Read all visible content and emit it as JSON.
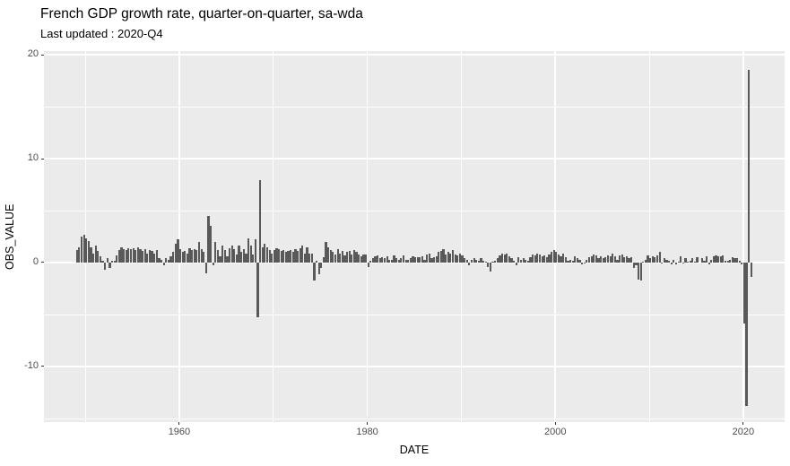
{
  "chart_data": {
    "type": "bar",
    "title": "French GDP growth rate, quarter-on-quarter, sa-wda",
    "subtitle": "Last updated : 2020-Q4",
    "xlabel": "DATE",
    "ylabel": "OBS_VALUE",
    "x_ticks": [
      1960,
      1980,
      2000,
      2020
    ],
    "x_minor_ticks": [
      1950,
      1970,
      1990,
      2010
    ],
    "y_ticks": [
      20,
      10,
      0,
      -10
    ],
    "y_minor_ticks": [
      15,
      5,
      -5,
      -15
    ],
    "xlim": [
      1945.6,
      2024.4
    ],
    "ylim": [
      -15.35,
      20.35
    ],
    "grid": "on",
    "legend": "none",
    "frequency": "quarterly",
    "start": "1949-Q1",
    "end": "2020-Q4",
    "start_year": 1949,
    "unit": "percent, quarter-on-quarter",
    "values": [
      1.2,
      1.5,
      2.5,
      2.7,
      2.3,
      2.1,
      1.5,
      0.9,
      1.6,
      1.1,
      0.6,
      0.2,
      -0.7,
      0.4,
      -0.5,
      0.2,
      0.2,
      0.7,
      1.2,
      1.5,
      1.3,
      1.2,
      1.4,
      1.3,
      1.4,
      1.2,
      1.5,
      1.3,
      1.1,
      1.3,
      0.9,
      1.2,
      1.1,
      0.9,
      1.2,
      0.4,
      0.3,
      -0.3,
      0.4,
      0.3,
      0.6,
      1.0,
      1.8,
      2.2,
      1.3,
      1.0,
      1.1,
      0.9,
      1.4,
      1.2,
      1.3,
      1.2,
      2.0,
      1.3,
      1.0,
      -1.0,
      4.5,
      3.5,
      -0.3,
      2.0,
      1.2,
      0.6,
      1.6,
      1.2,
      0.6,
      1.4,
      1.6,
      1.3,
      0.8,
      1.6,
      1.0,
      1.3,
      0.9,
      2.3,
      1.6,
      0.8,
      2.2,
      -5.3,
      7.9,
      1.5,
      1.8,
      1.5,
      1.2,
      0.9,
      1.2,
      1.4,
      1.3,
      1.1,
      1.2,
      1.0,
      1.1,
      1.2,
      1.0,
      1.3,
      1.1,
      1.4,
      1.6,
      0.9,
      1.5,
      0.9,
      0.9,
      -1.7,
      0.2,
      -1.1,
      -0.5,
      0.5,
      2.0,
      1.5,
      1.2,
      1.0,
      0.8,
      1.3,
      0.9,
      1.1,
      0.7,
      1.0,
      1.1,
      0.8,
      1.2,
      1.0,
      0.8,
      0.6,
      0.8,
      0.8,
      -0.4,
      0.2,
      0.4,
      0.6,
      0.7,
      0.4,
      0.5,
      0.4,
      0.6,
      0.3,
      0.3,
      0.7,
      0.4,
      0.3,
      0.4,
      0.7,
      0.3,
      0.3,
      0.4,
      0.6,
      0.5,
      0.5,
      0.5,
      0.6,
      0.3,
      0.8,
      0.9,
      0.4,
      0.5,
      0.6,
      1.0,
      1.1,
      1.3,
      0.8,
      1.0,
      0.9,
      1.2,
      0.8,
      0.7,
      0.9,
      0.7,
      0.4,
      0.3,
      -0.3,
      0.3,
      0.4,
      0.3,
      0.2,
      0.4,
      0.2,
      0.1,
      -0.4,
      -0.9,
      0.1,
      0.2,
      0.4,
      0.7,
      0.9,
      0.8,
      0.9,
      0.6,
      0.4,
      0.2,
      -0.3,
      0.5,
      0.3,
      0.4,
      0.3,
      0.2,
      0.5,
      0.8,
      0.7,
      0.9,
      0.8,
      0.6,
      0.7,
      0.5,
      0.8,
      1.0,
      1.2,
      1.0,
      0.8,
      0.6,
      0.9,
      0.5,
      0.2,
      0.3,
      0.2,
      0.6,
      0.4,
      0.3,
      -0.2,
      -0.1,
      0.3,
      0.5,
      0.6,
      0.8,
      0.7,
      0.4,
      0.6,
      0.4,
      0.5,
      0.7,
      0.6,
      0.9,
      0.6,
      0.3,
      0.7,
      0.8,
      0.5,
      0.6,
      0.4,
      0.5,
      -0.5,
      -0.3,
      -1.6,
      -1.7,
      0.1,
      0.3,
      0.7,
      0.4,
      0.6,
      0.5,
      0.7,
      1.0,
      -0.1,
      0.4,
      0.3,
      0.2,
      -0.2,
      0.3,
      -0.2,
      0.1,
      0.6,
      -0.1,
      0.4,
      0.1,
      0.2,
      0.4,
      0.1,
      0.5,
      0.0,
      0.4,
      0.2,
      0.6,
      -0.2,
      0.3,
      0.6,
      0.7,
      0.6,
      0.6,
      0.7,
      0.2,
      0.2,
      0.3,
      0.5,
      0.4,
      0.4,
      0.2,
      -0.2,
      -5.9,
      -13.8,
      18.5,
      -1.4
    ],
    "colors": {
      "bar": "#595959",
      "panel_bg": "#EBEBEB",
      "grid": "#FFFFFF",
      "tick_label": "#4D4D4D",
      "tick_mark": "#333333",
      "axis_title": "#000000"
    }
  }
}
